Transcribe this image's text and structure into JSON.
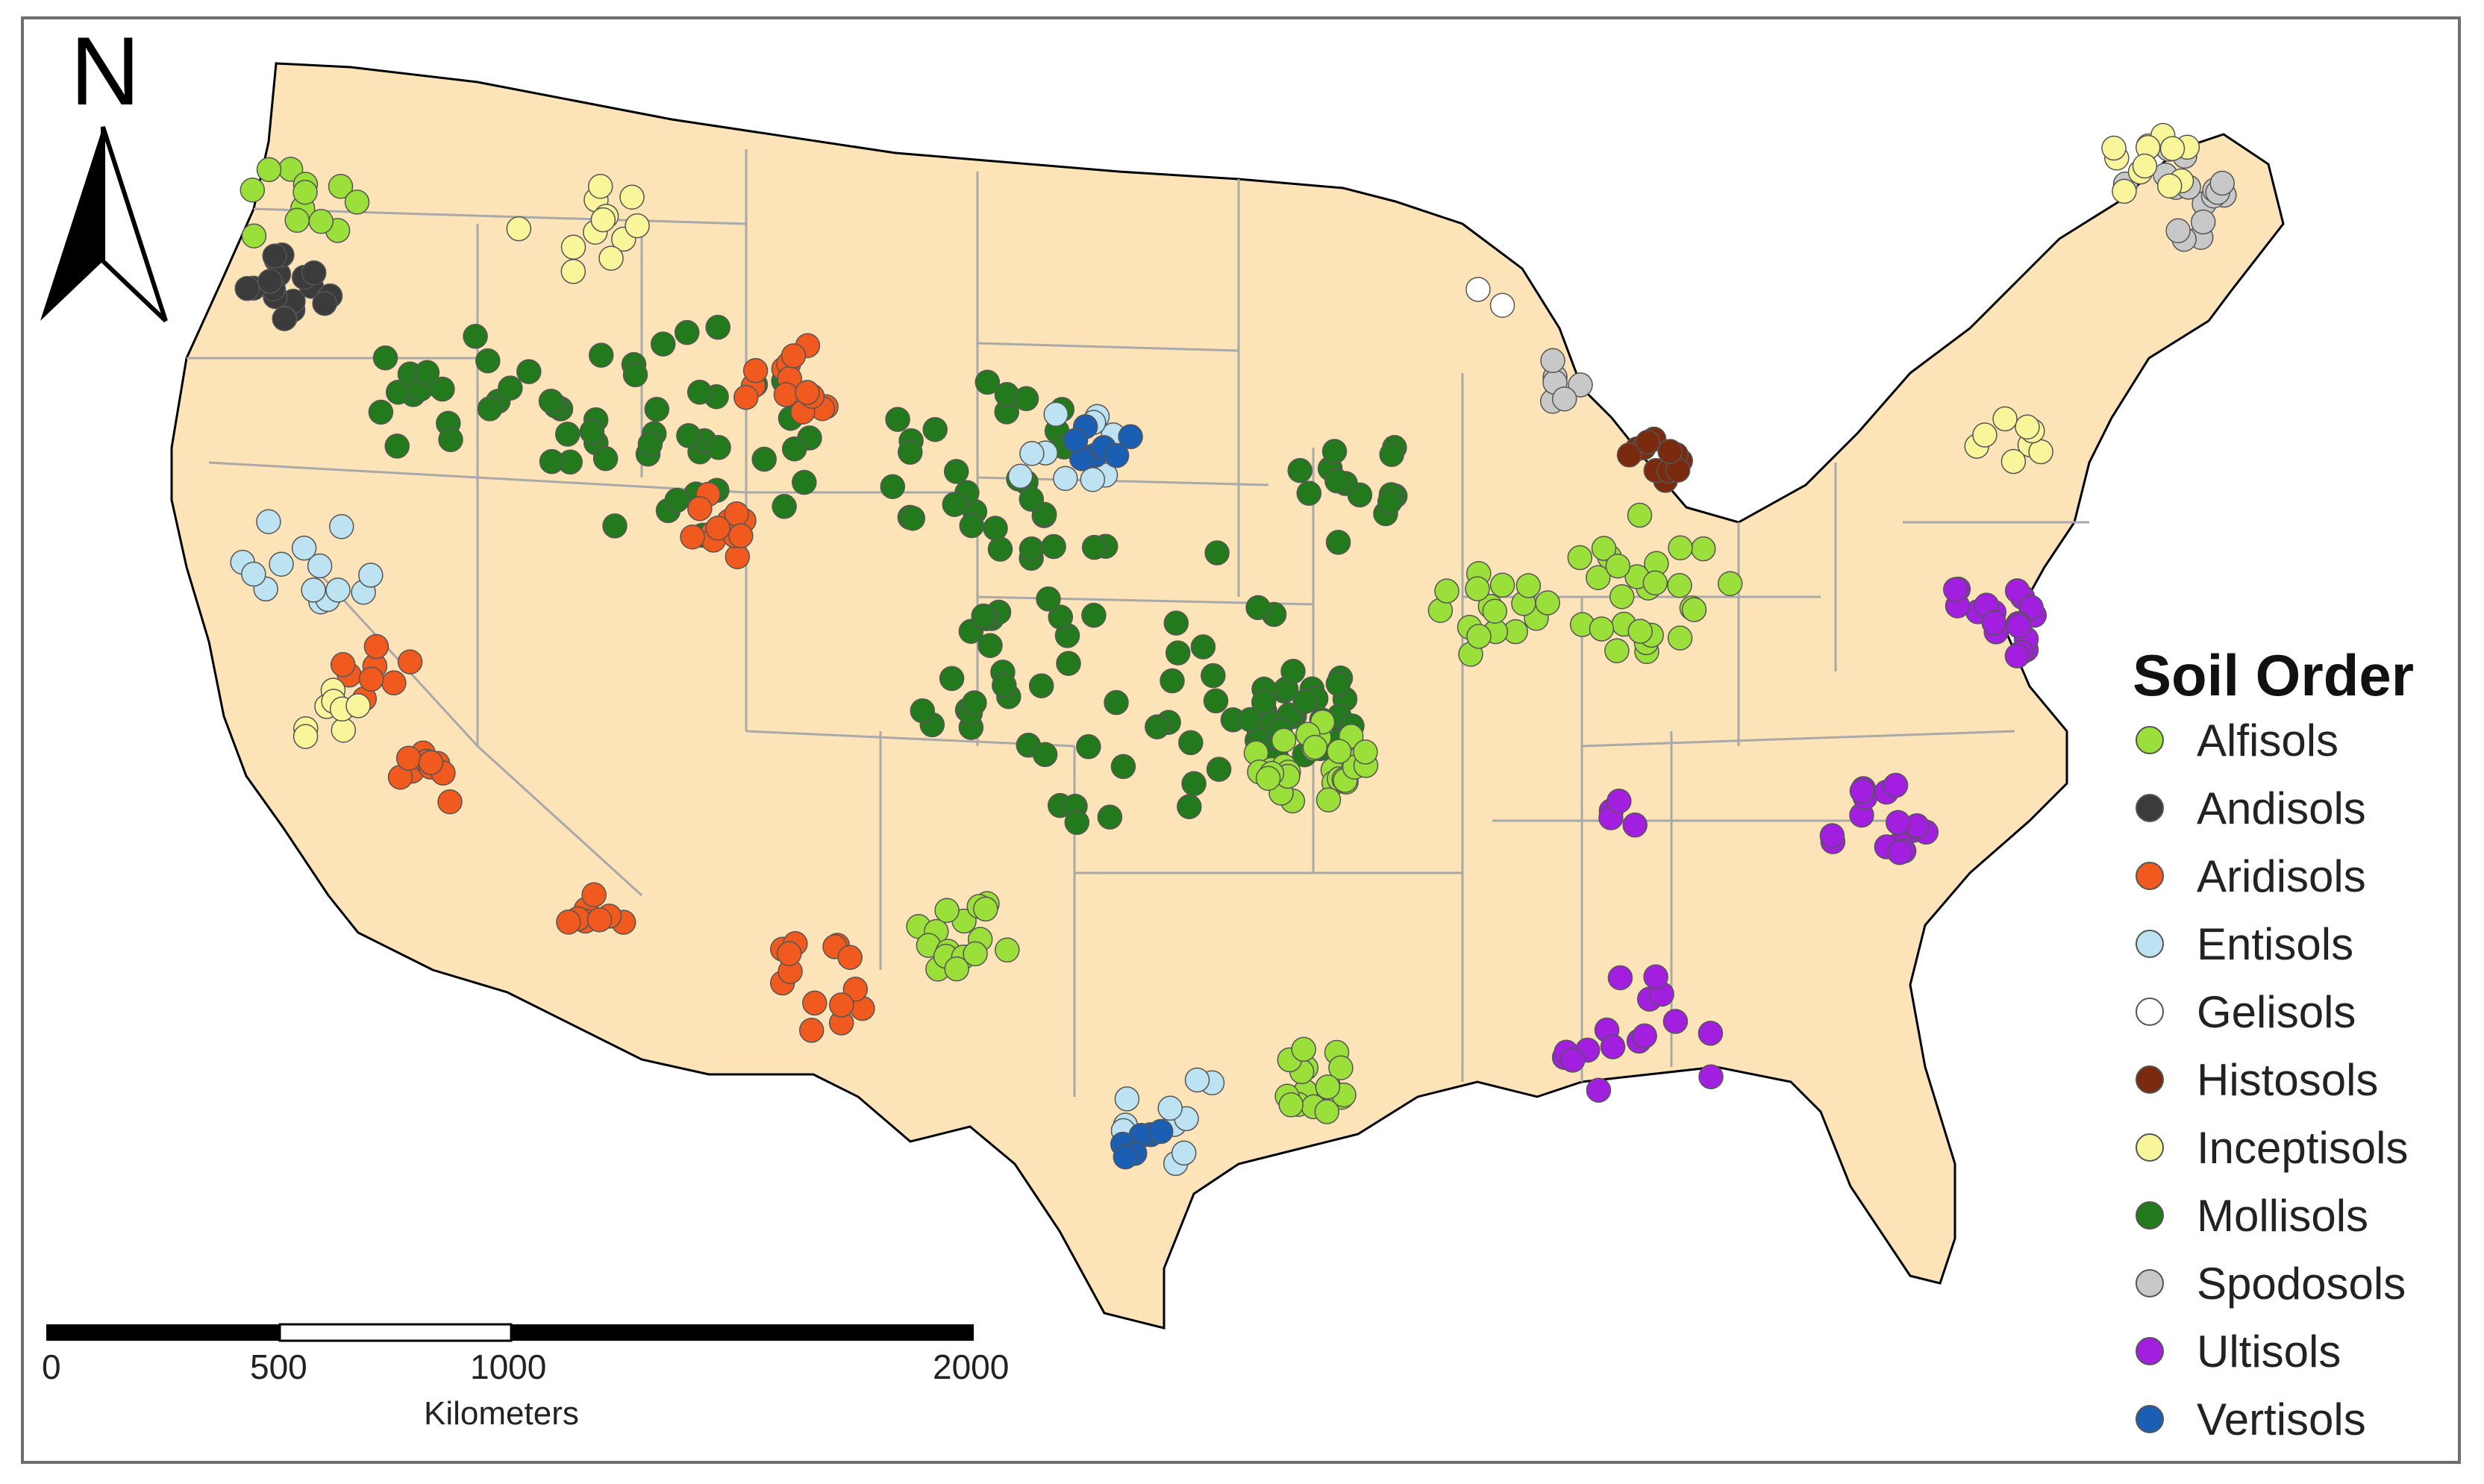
{
  "north_arrow": {
    "label": "N",
    "icon": "north-arrow-icon"
  },
  "legend": {
    "title": "Soil Order",
    "items": [
      {
        "label": "Alfisols",
        "color": "#9be03a"
      },
      {
        "label": "Andisols",
        "color": "#3b3b3b"
      },
      {
        "label": "Aridisols",
        "color": "#f05a1e"
      },
      {
        "label": "Entisols",
        "color": "#bde3f2"
      },
      {
        "label": "Gelisols",
        "color": "#ffffff"
      },
      {
        "label": "Histosols",
        "color": "#7a2a0e"
      },
      {
        "label": "Inceptisols",
        "color": "#f8f59a"
      },
      {
        "label": "Mollisols",
        "color": "#237a1c"
      },
      {
        "label": "Spodosols",
        "color": "#c8c8c8"
      },
      {
        "label": "Ultisols",
        "color": "#a21fe0"
      },
      {
        "label": "Vertisols",
        "color": "#1a5fb4"
      }
    ]
  },
  "scale_bar": {
    "ticks": [
      "0",
      "500",
      "1000",
      "2000"
    ],
    "units": "Kilometers"
  },
  "map_colors": {
    "land": "#fde3b8",
    "border": "#a9a9a9",
    "coast": "#000000"
  }
}
